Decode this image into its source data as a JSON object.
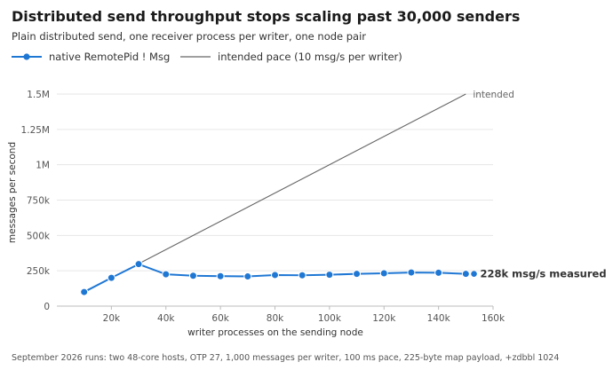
{
  "header": {
    "title": "Distributed send throughput stops scaling past 30,000 senders",
    "subtitle": "Plain distributed send, one receiver process per writer, one node pair"
  },
  "footnote": "September 2026 runs: two 48-core hosts, OTP 27, 1,000 messages per writer, 100 ms pace, 225-byte map payload, +zdbbl 1024",
  "colors": {
    "measured": "#1f77d4",
    "intended": "#666666",
    "grid": "#e6e6e6"
  },
  "chart_data": {
    "type": "line",
    "xlabel": "writer processes on the sending node",
    "ylabel": "messages per second",
    "xlim": [
      0,
      160000
    ],
    "ylim": [
      0,
      1500000
    ],
    "xticks": [
      20000,
      40000,
      60000,
      80000,
      100000,
      120000,
      140000,
      160000
    ],
    "xtick_labels": [
      "20k",
      "40k",
      "60k",
      "80k",
      "100k",
      "120k",
      "140k",
      "160k"
    ],
    "yticks": [
      0,
      250000,
      500000,
      750000,
      1000000,
      1250000,
      1500000
    ],
    "ytick_labels": [
      "0",
      "250k",
      "500k",
      "750k",
      "1M",
      "1.25M",
      "1.5M"
    ],
    "grid": "horizontal",
    "legend_position": "top-left",
    "series": [
      {
        "name": "native RemotePid ! Msg",
        "style": "line-with-markers",
        "x": [
          10000,
          20000,
          30000,
          40000,
          50000,
          60000,
          70000,
          80000,
          90000,
          100000,
          110000,
          120000,
          130000,
          140000,
          150000
        ],
        "y": [
          100000,
          200000,
          297000,
          225000,
          215000,
          212000,
          210000,
          220000,
          218000,
          222000,
          228000,
          232000,
          238000,
          236000,
          228000
        ],
        "end_marker": {
          "x": 153000,
          "y": 228000
        },
        "end_label": "228k msg/s measured"
      },
      {
        "name": "intended pace (10 msg/s per writer)",
        "style": "line",
        "x": [
          30000,
          150000
        ],
        "y": [
          300000,
          1500000
        ],
        "end_label": "intended"
      }
    ]
  }
}
